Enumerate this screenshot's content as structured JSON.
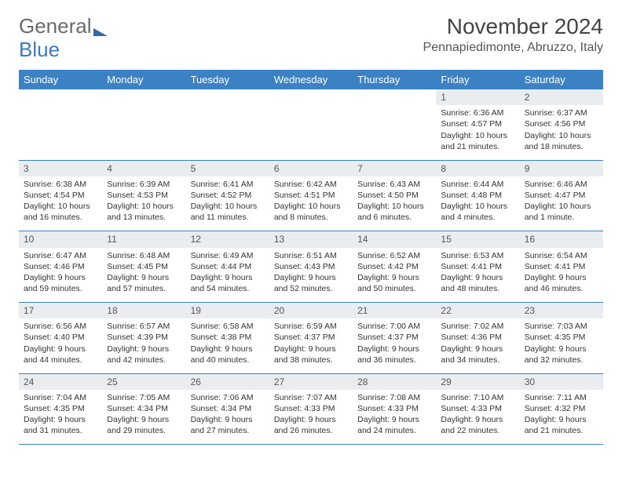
{
  "logo": {
    "part1": "General",
    "part2": "Blue"
  },
  "title": "November 2024",
  "location": "Pennapiedimonte, Abruzzo, Italy",
  "colors": {
    "header_bg": "#3b82c4",
    "header_text": "#ffffff",
    "daynum_bg": "#e9edf0",
    "border": "#3b82c4",
    "body_text": "#333333"
  },
  "day_headers": [
    "Sunday",
    "Monday",
    "Tuesday",
    "Wednesday",
    "Thursday",
    "Friday",
    "Saturday"
  ],
  "weeks": [
    [
      null,
      null,
      null,
      null,
      null,
      {
        "n": "1",
        "sr": "6:36 AM",
        "ss": "4:57 PM",
        "dl": "10 hours and 21 minutes."
      },
      {
        "n": "2",
        "sr": "6:37 AM",
        "ss": "4:56 PM",
        "dl": "10 hours and 18 minutes."
      }
    ],
    [
      {
        "n": "3",
        "sr": "6:38 AM",
        "ss": "4:54 PM",
        "dl": "10 hours and 16 minutes."
      },
      {
        "n": "4",
        "sr": "6:39 AM",
        "ss": "4:53 PM",
        "dl": "10 hours and 13 minutes."
      },
      {
        "n": "5",
        "sr": "6:41 AM",
        "ss": "4:52 PM",
        "dl": "10 hours and 11 minutes."
      },
      {
        "n": "6",
        "sr": "6:42 AM",
        "ss": "4:51 PM",
        "dl": "10 hours and 8 minutes."
      },
      {
        "n": "7",
        "sr": "6:43 AM",
        "ss": "4:50 PM",
        "dl": "10 hours and 6 minutes."
      },
      {
        "n": "8",
        "sr": "6:44 AM",
        "ss": "4:48 PM",
        "dl": "10 hours and 4 minutes."
      },
      {
        "n": "9",
        "sr": "6:46 AM",
        "ss": "4:47 PM",
        "dl": "10 hours and 1 minute."
      }
    ],
    [
      {
        "n": "10",
        "sr": "6:47 AM",
        "ss": "4:46 PM",
        "dl": "9 hours and 59 minutes."
      },
      {
        "n": "11",
        "sr": "6:48 AM",
        "ss": "4:45 PM",
        "dl": "9 hours and 57 minutes."
      },
      {
        "n": "12",
        "sr": "6:49 AM",
        "ss": "4:44 PM",
        "dl": "9 hours and 54 minutes."
      },
      {
        "n": "13",
        "sr": "6:51 AM",
        "ss": "4:43 PM",
        "dl": "9 hours and 52 minutes."
      },
      {
        "n": "14",
        "sr": "6:52 AM",
        "ss": "4:42 PM",
        "dl": "9 hours and 50 minutes."
      },
      {
        "n": "15",
        "sr": "6:53 AM",
        "ss": "4:41 PM",
        "dl": "9 hours and 48 minutes."
      },
      {
        "n": "16",
        "sr": "6:54 AM",
        "ss": "4:41 PM",
        "dl": "9 hours and 46 minutes."
      }
    ],
    [
      {
        "n": "17",
        "sr": "6:56 AM",
        "ss": "4:40 PM",
        "dl": "9 hours and 44 minutes."
      },
      {
        "n": "18",
        "sr": "6:57 AM",
        "ss": "4:39 PM",
        "dl": "9 hours and 42 minutes."
      },
      {
        "n": "19",
        "sr": "6:58 AM",
        "ss": "4:38 PM",
        "dl": "9 hours and 40 minutes."
      },
      {
        "n": "20",
        "sr": "6:59 AM",
        "ss": "4:37 PM",
        "dl": "9 hours and 38 minutes."
      },
      {
        "n": "21",
        "sr": "7:00 AM",
        "ss": "4:37 PM",
        "dl": "9 hours and 36 minutes."
      },
      {
        "n": "22",
        "sr": "7:02 AM",
        "ss": "4:36 PM",
        "dl": "9 hours and 34 minutes."
      },
      {
        "n": "23",
        "sr": "7:03 AM",
        "ss": "4:35 PM",
        "dl": "9 hours and 32 minutes."
      }
    ],
    [
      {
        "n": "24",
        "sr": "7:04 AM",
        "ss": "4:35 PM",
        "dl": "9 hours and 31 minutes."
      },
      {
        "n": "25",
        "sr": "7:05 AM",
        "ss": "4:34 PM",
        "dl": "9 hours and 29 minutes."
      },
      {
        "n": "26",
        "sr": "7:06 AM",
        "ss": "4:34 PM",
        "dl": "9 hours and 27 minutes."
      },
      {
        "n": "27",
        "sr": "7:07 AM",
        "ss": "4:33 PM",
        "dl": "9 hours and 26 minutes."
      },
      {
        "n": "28",
        "sr": "7:08 AM",
        "ss": "4:33 PM",
        "dl": "9 hours and 24 minutes."
      },
      {
        "n": "29",
        "sr": "7:10 AM",
        "ss": "4:33 PM",
        "dl": "9 hours and 22 minutes."
      },
      {
        "n": "30",
        "sr": "7:11 AM",
        "ss": "4:32 PM",
        "dl": "9 hours and 21 minutes."
      }
    ]
  ],
  "labels": {
    "sunrise": "Sunrise: ",
    "sunset": "Sunset: ",
    "daylight": "Daylight: "
  }
}
